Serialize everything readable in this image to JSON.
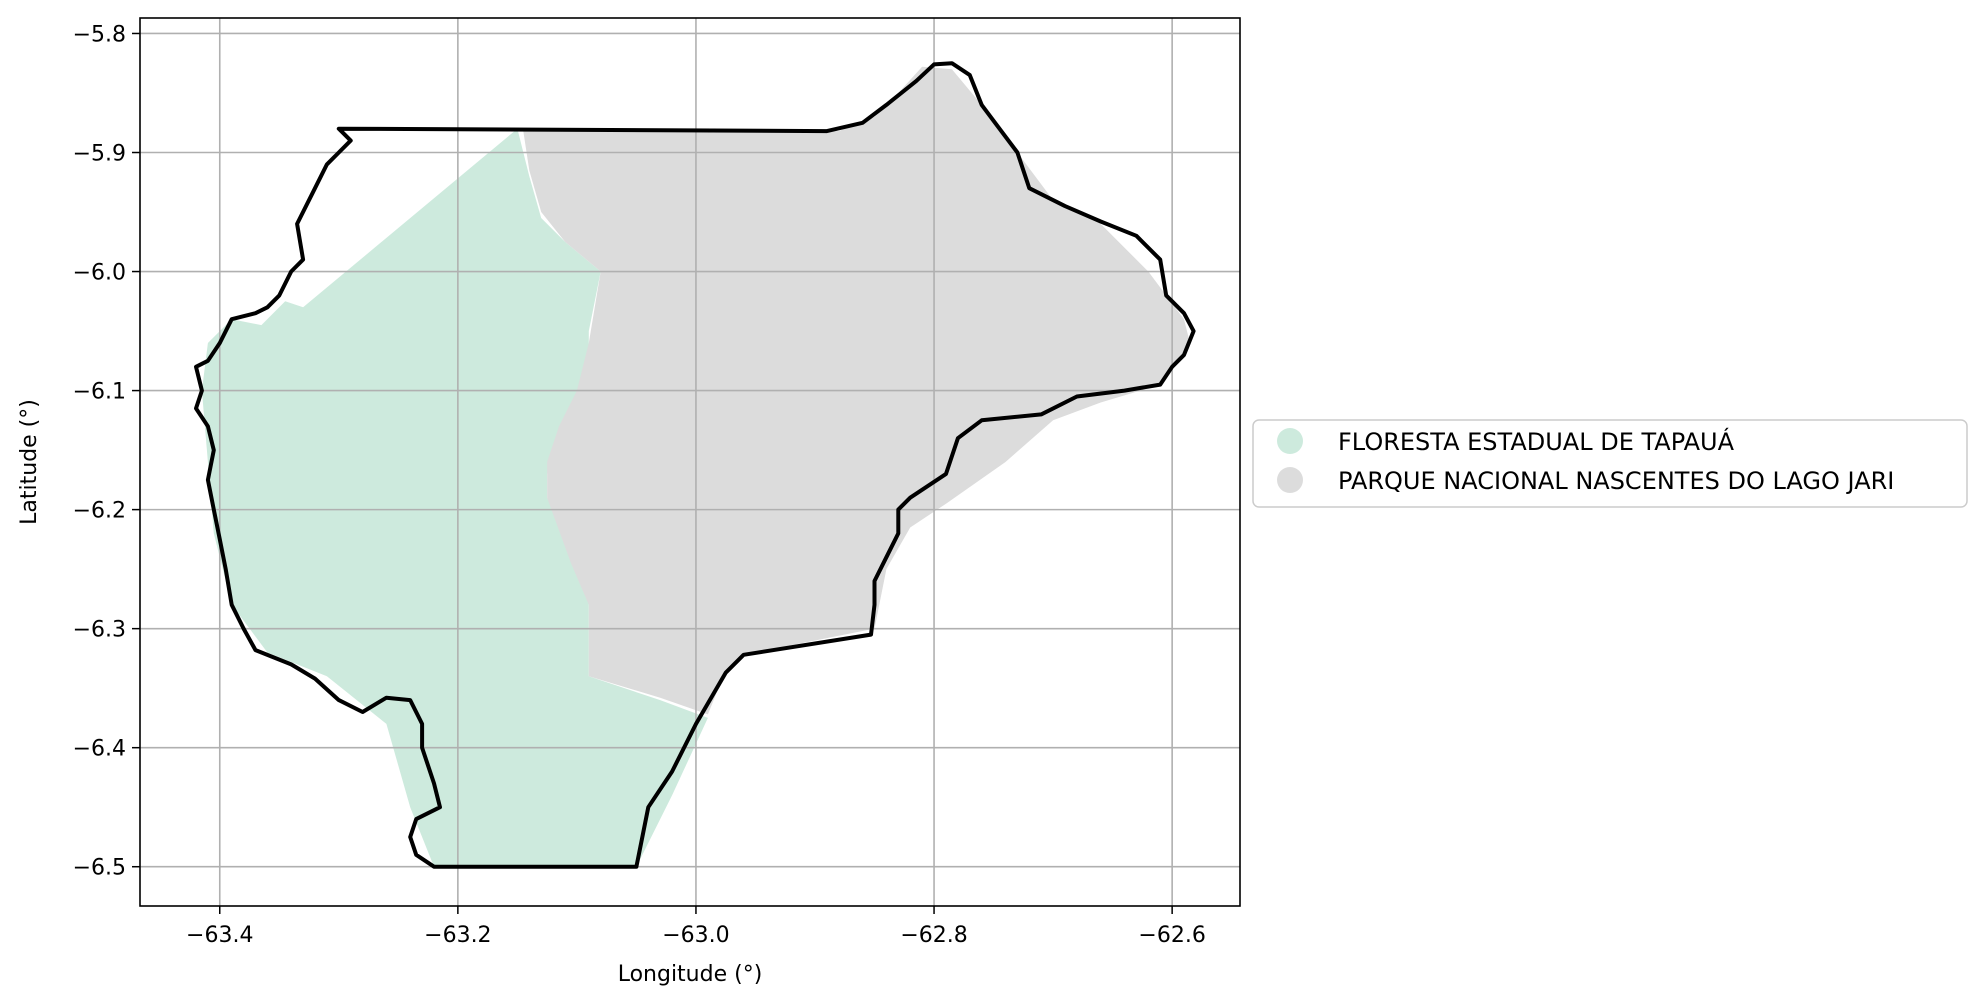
{
  "chart_data": {
    "type": "map",
    "title": "",
    "xlabel": "Longitude (°)",
    "ylabel": "Latitude (°)",
    "xlim": [
      -63.467,
      -62.543
    ],
    "ylim": [
      -6.533,
      -5.787
    ],
    "xticks": [
      -63.4,
      -63.2,
      -63.0,
      -62.8,
      -62.6
    ],
    "xtick_labels": [
      "−63.4",
      "−63.2",
      "−63.0",
      "−62.8",
      "−62.6"
    ],
    "yticks": [
      -5.8,
      -5.9,
      -6.0,
      -6.1,
      -6.2,
      -6.3,
      -6.4,
      -6.5
    ],
    "ytick_labels": [
      "−5.8",
      "−5.9",
      "−6.0",
      "−6.1",
      "−6.2",
      "−6.3",
      "−6.4",
      "−6.5"
    ],
    "grid": true,
    "legend_position": "right, vertically centered",
    "legend": [
      {
        "label": "FLORESTA ESTADUAL DE TAPAUÁ",
        "color": "#cdeadd"
      },
      {
        "label": "PARQUE NACIONAL NASCENTES DO LAGO JARI",
        "color": "#dcdcdc"
      }
    ],
    "layers": [
      {
        "name": "FLORESTA ESTADUAL DE TAPAUÁ",
        "color": "#cdeadd",
        "coordinates": [
          [
            -63.15,
            -5.88
          ],
          [
            -63.14,
            -5.92
          ],
          [
            -63.13,
            -5.955
          ],
          [
            -63.11,
            -5.975
          ],
          [
            -63.08,
            -6.0
          ],
          [
            -63.09,
            -6.05
          ],
          [
            -63.09,
            -6.08
          ],
          [
            -63.1,
            -6.11
          ],
          [
            -63.11,
            -6.14
          ],
          [
            -63.125,
            -6.17
          ],
          [
            -63.125,
            -6.19
          ],
          [
            -63.1,
            -6.24
          ],
          [
            -63.09,
            -6.28
          ],
          [
            -63.09,
            -6.34
          ],
          [
            -63.03,
            -6.36
          ],
          [
            -62.99,
            -6.375
          ],
          [
            -63.02,
            -6.44
          ],
          [
            -63.05,
            -6.5
          ],
          [
            -63.22,
            -6.5
          ],
          [
            -63.24,
            -6.45
          ],
          [
            -63.26,
            -6.38
          ],
          [
            -63.31,
            -6.34
          ],
          [
            -63.36,
            -6.32
          ],
          [
            -63.39,
            -6.28
          ],
          [
            -63.405,
            -6.22
          ],
          [
            -63.41,
            -6.16
          ],
          [
            -63.415,
            -6.1
          ],
          [
            -63.41,
            -6.06
          ],
          [
            -63.39,
            -6.04
          ],
          [
            -63.365,
            -6.045
          ],
          [
            -63.345,
            -6.025
          ],
          [
            -63.33,
            -6.03
          ]
        ]
      },
      {
        "name": "PARQUE NACIONAL NASCENTES DO LAGO JARI",
        "color": "#dcdcdc",
        "coordinates": [
          [
            -63.145,
            -5.882
          ],
          [
            -62.88,
            -5.882
          ],
          [
            -62.85,
            -5.87
          ],
          [
            -62.83,
            -5.85
          ],
          [
            -62.81,
            -5.828
          ],
          [
            -62.785,
            -5.83
          ],
          [
            -62.76,
            -5.86
          ],
          [
            -62.73,
            -5.9
          ],
          [
            -62.7,
            -5.94
          ],
          [
            -62.66,
            -5.96
          ],
          [
            -62.62,
            -6.0
          ],
          [
            -62.59,
            -6.04
          ],
          [
            -62.585,
            -6.06
          ],
          [
            -62.61,
            -6.095
          ],
          [
            -62.66,
            -6.11
          ],
          [
            -62.7,
            -6.125
          ],
          [
            -62.74,
            -6.16
          ],
          [
            -62.79,
            -6.195
          ],
          [
            -62.82,
            -6.215
          ],
          [
            -62.84,
            -6.25
          ],
          [
            -62.85,
            -6.3
          ],
          [
            -62.96,
            -6.322
          ],
          [
            -62.975,
            -6.335
          ],
          [
            -62.99,
            -6.372
          ],
          [
            -63.03,
            -6.358
          ],
          [
            -63.09,
            -6.34
          ],
          [
            -63.09,
            -6.28
          ],
          [
            -63.105,
            -6.245
          ],
          [
            -63.125,
            -6.19
          ],
          [
            -63.125,
            -6.16
          ],
          [
            -63.115,
            -6.13
          ],
          [
            -63.1,
            -6.1
          ],
          [
            -63.09,
            -6.06
          ],
          [
            -63.08,
            -6.0
          ],
          [
            -63.11,
            -5.975
          ],
          [
            -63.13,
            -5.95
          ],
          [
            -63.14,
            -5.915
          ]
        ]
      }
    ],
    "boundary": {
      "color": "#000000",
      "coordinates": [
        [
          -63.3,
          -5.88
        ],
        [
          -62.89,
          -5.882
        ],
        [
          -62.86,
          -5.875
        ],
        [
          -62.84,
          -5.86
        ],
        [
          -62.815,
          -5.84
        ],
        [
          -62.8,
          -5.826
        ],
        [
          -62.785,
          -5.825
        ],
        [
          -62.77,
          -5.835
        ],
        [
          -62.76,
          -5.86
        ],
        [
          -62.745,
          -5.88
        ],
        [
          -62.73,
          -5.9
        ],
        [
          -62.72,
          -5.93
        ],
        [
          -62.69,
          -5.945
        ],
        [
          -62.66,
          -5.958
        ],
        [
          -62.63,
          -5.97
        ],
        [
          -62.61,
          -5.99
        ],
        [
          -62.605,
          -6.02
        ],
        [
          -62.59,
          -6.035
        ],
        [
          -62.582,
          -6.05
        ],
        [
          -62.59,
          -6.07
        ],
        [
          -62.6,
          -6.08
        ],
        [
          -62.61,
          -6.095
        ],
        [
          -62.64,
          -6.1
        ],
        [
          -62.68,
          -6.105
        ],
        [
          -62.71,
          -6.12
        ],
        [
          -62.76,
          -6.125
        ],
        [
          -62.78,
          -6.14
        ],
        [
          -62.79,
          -6.17
        ],
        [
          -62.82,
          -6.19
        ],
        [
          -62.83,
          -6.2
        ],
        [
          -62.83,
          -6.22
        ],
        [
          -62.84,
          -6.24
        ],
        [
          -62.85,
          -6.26
        ],
        [
          -62.85,
          -6.28
        ],
        [
          -62.853,
          -6.305
        ],
        [
          -62.96,
          -6.322
        ],
        [
          -62.975,
          -6.337
        ],
        [
          -63.0,
          -6.38
        ],
        [
          -63.02,
          -6.42
        ],
        [
          -63.04,
          -6.45
        ],
        [
          -63.05,
          -6.5
        ],
        [
          -63.22,
          -6.5
        ],
        [
          -63.235,
          -6.49
        ],
        [
          -63.24,
          -6.475
        ],
        [
          -63.235,
          -6.46
        ],
        [
          -63.215,
          -6.45
        ],
        [
          -63.22,
          -6.43
        ],
        [
          -63.23,
          -6.4
        ],
        [
          -63.23,
          -6.38
        ],
        [
          -63.24,
          -6.36
        ],
        [
          -63.26,
          -6.358
        ],
        [
          -63.28,
          -6.37
        ],
        [
          -63.3,
          -6.36
        ],
        [
          -63.32,
          -6.342
        ],
        [
          -63.34,
          -6.33
        ],
        [
          -63.37,
          -6.318
        ],
        [
          -63.38,
          -6.3
        ],
        [
          -63.39,
          -6.28
        ],
        [
          -63.395,
          -6.25
        ],
        [
          -63.4,
          -6.225
        ],
        [
          -63.405,
          -6.2
        ],
        [
          -63.41,
          -6.175
        ],
        [
          -63.405,
          -6.15
        ],
        [
          -63.41,
          -6.13
        ],
        [
          -63.42,
          -6.115
        ],
        [
          -63.415,
          -6.1
        ],
        [
          -63.42,
          -6.08
        ],
        [
          -63.41,
          -6.075
        ],
        [
          -63.4,
          -6.06
        ],
        [
          -63.39,
          -6.04
        ],
        [
          -63.37,
          -6.035
        ],
        [
          -63.36,
          -6.03
        ],
        [
          -63.35,
          -6.02
        ],
        [
          -63.34,
          -6.0
        ],
        [
          -63.33,
          -5.99
        ],
        [
          -63.335,
          -5.96
        ],
        [
          -63.32,
          -5.93
        ],
        [
          -63.31,
          -5.91
        ],
        [
          -63.3,
          -5.9
        ],
        [
          -63.29,
          -5.89
        ]
      ]
    }
  }
}
